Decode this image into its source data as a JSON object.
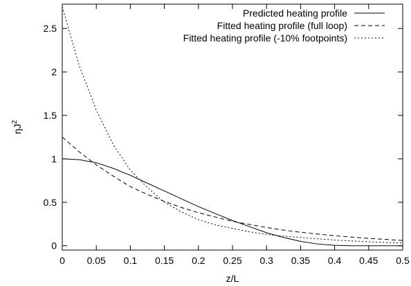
{
  "chart_data": {
    "type": "line",
    "title": "",
    "xlabel": "z/L",
    "ylabel": "ηJ",
    "ylabel_superscript": "2",
    "xlim": [
      0,
      0.5
    ],
    "ylim": [
      -0.05,
      2.78
    ],
    "xticks": [
      "0",
      "0.05",
      "0.1",
      "0.15",
      "0.2",
      "0.25",
      "0.3",
      "0.35",
      "0.4",
      "0.45",
      "0.5"
    ],
    "yticks": [
      "0",
      "0.5",
      "1",
      "1.5",
      "2",
      "2.5"
    ],
    "grid": false,
    "legend_position": "top-right",
    "x": [
      0,
      0.025,
      0.05,
      0.075,
      0.1,
      0.125,
      0.15,
      0.175,
      0.2,
      0.225,
      0.25,
      0.275,
      0.3,
      0.325,
      0.35,
      0.375,
      0.4,
      0.425,
      0.45,
      0.475,
      0.5
    ],
    "series": [
      {
        "name": "Predicted heating profile",
        "style": "solid",
        "values": [
          1.0,
          0.99,
          0.955,
          0.89,
          0.81,
          0.72,
          0.63,
          0.54,
          0.45,
          0.37,
          0.29,
          0.22,
          0.15,
          0.095,
          0.05,
          0.02,
          0.005,
          0.0,
          0.0,
          0.0,
          0.0
        ]
      },
      {
        "name": "Fitted heating profile (full loop)",
        "style": "dashed",
        "values": [
          1.25,
          1.08,
          0.93,
          0.8,
          0.68,
          0.59,
          0.51,
          0.44,
          0.38,
          0.33,
          0.28,
          0.245,
          0.21,
          0.18,
          0.155,
          0.135,
          0.115,
          0.1,
          0.085,
          0.073,
          0.06
        ]
      },
      {
        "name": "Fitted heating profile (-10% footpoints)",
        "style": "dotted",
        "values": [
          2.75,
          2.07,
          1.56,
          1.16,
          0.87,
          0.67,
          0.5,
          0.39,
          0.3,
          0.24,
          0.2,
          0.16,
          0.13,
          0.11,
          0.095,
          0.08,
          0.065,
          0.055,
          0.045,
          0.037,
          0.03
        ]
      }
    ]
  }
}
